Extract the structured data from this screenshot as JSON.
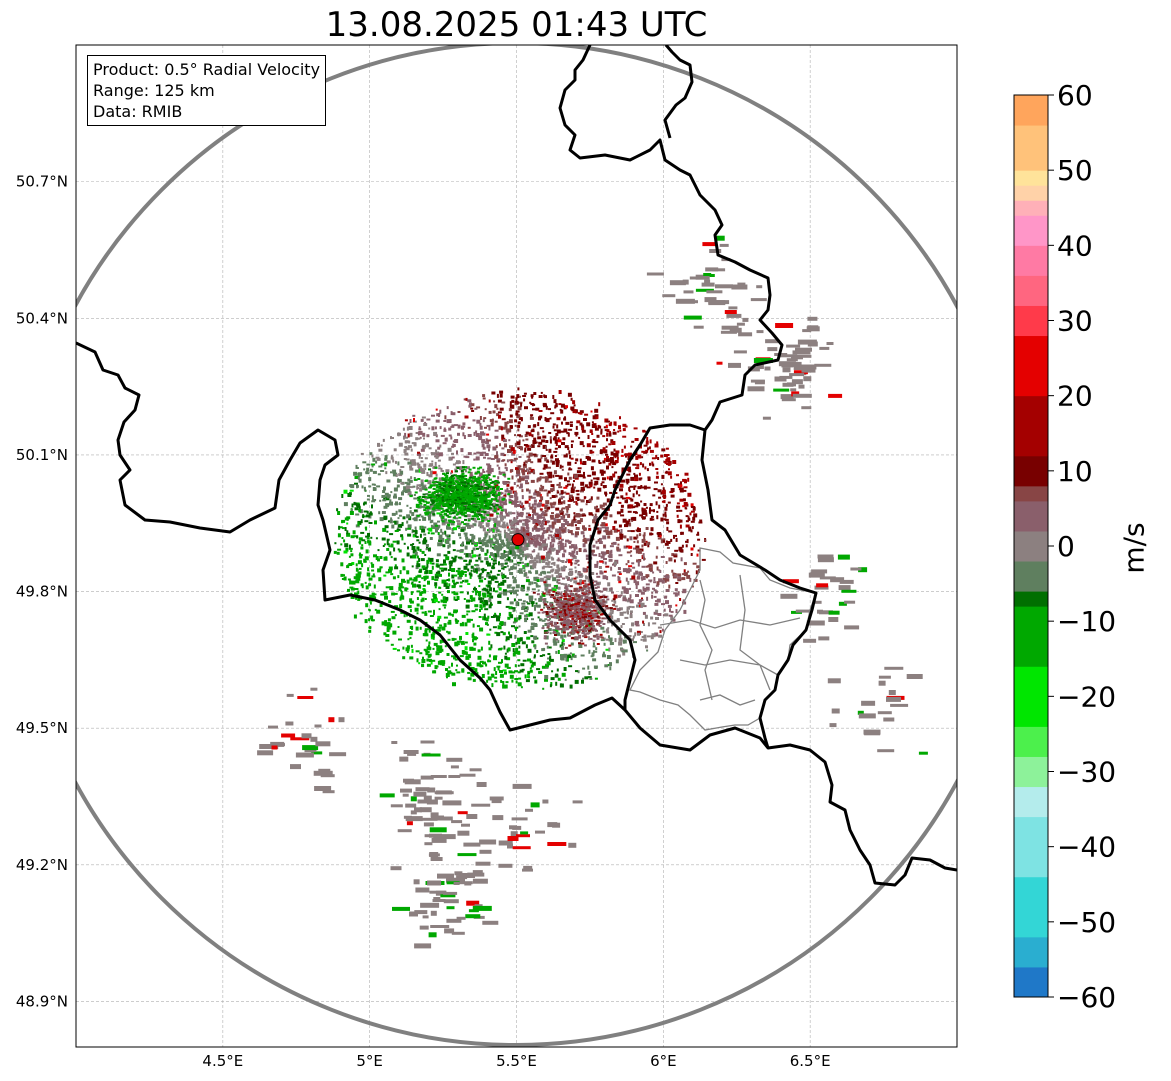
{
  "title": "13.08.2025 01:43 UTC",
  "info": {
    "product": "Product: 0.5° Radial Velocity",
    "range": "Range: 125 km",
    "data": "Data: RMIB"
  },
  "map": {
    "lon_range": [
      4.0,
      7.0
    ],
    "lat_range": [
      48.8,
      51.0
    ],
    "lon_ticks": [
      "4.5°E",
      "5°E",
      "5.5°E",
      "6°E",
      "6.5°E"
    ],
    "lat_ticks": [
      "50.7°N",
      "50.4°N",
      "50.1°N",
      "49.8°N",
      "49.5°N",
      "49.2°N",
      "48.9°N"
    ],
    "gridlines": true,
    "radar_site": {
      "lon": 5.505,
      "lat": 49.914,
      "color": "#e00000"
    },
    "range_ring_color": "#808080",
    "border_color": "#000000",
    "region_border_color": "#808080"
  },
  "colorbar": {
    "label": "m/s",
    "min": -60,
    "max": 60,
    "ticks": [
      "60",
      "50",
      "40",
      "30",
      "20",
      "10",
      "0",
      "−10",
      "−20",
      "−30",
      "−40",
      "−50",
      "−60"
    ],
    "bands": [
      {
        "from": -60,
        "to": -56,
        "color": "#1f78c8"
      },
      {
        "from": -56,
        "to": -52,
        "color": "#2aaed0"
      },
      {
        "from": -52,
        "to": -44,
        "color": "#33d6d6"
      },
      {
        "from": -44,
        "to": -36,
        "color": "#7ee3e3"
      },
      {
        "from": -36,
        "to": -32,
        "color": "#b4ecec"
      },
      {
        "from": -32,
        "to": -28,
        "color": "#8df29a"
      },
      {
        "from": -28,
        "to": -24,
        "color": "#4cf04c"
      },
      {
        "from": -24,
        "to": -16,
        "color": "#00e600"
      },
      {
        "from": -16,
        "to": -8,
        "color": "#00a800"
      },
      {
        "from": -8,
        "to": -6,
        "color": "#006f00"
      },
      {
        "from": -6,
        "to": -2,
        "color": "#5f7f5f"
      },
      {
        "from": -2,
        "to": 2,
        "color": "#8c8080"
      },
      {
        "from": 2,
        "to": 6,
        "color": "#8a5f6b"
      },
      {
        "from": 6,
        "to": 8,
        "color": "#884545"
      },
      {
        "from": 8,
        "to": 12,
        "color": "#780000"
      },
      {
        "from": 12,
        "to": 20,
        "color": "#a40000"
      },
      {
        "from": 20,
        "to": 28,
        "color": "#e40000"
      },
      {
        "from": 28,
        "to": 32,
        "color": "#ff3a4a"
      },
      {
        "from": 32,
        "to": 36,
        "color": "#ff6680"
      },
      {
        "from": 36,
        "to": 40,
        "color": "#ff7aa4"
      },
      {
        "from": 40,
        "to": 44,
        "color": "#ff96c8"
      },
      {
        "from": 44,
        "to": 46,
        "color": "#ffb0b8"
      },
      {
        "from": 46,
        "to": 48,
        "color": "#ffd2a8"
      },
      {
        "from": 48,
        "to": 50,
        "color": "#ffe39a"
      },
      {
        "from": 50,
        "to": 56,
        "color": "#ffc27a"
      },
      {
        "from": 56,
        "to": 60,
        "color": "#ffa55c"
      }
    ]
  }
}
